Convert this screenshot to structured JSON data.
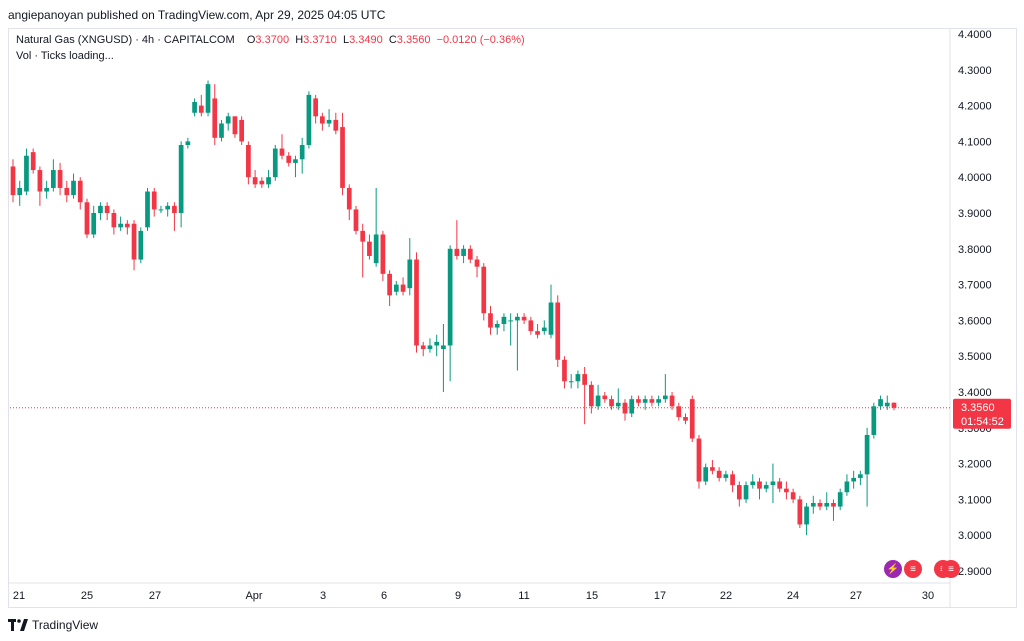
{
  "header": {
    "publisher_text": "angiepanoyan published on TradingView.com, Apr 29, 2025 04:05 UTC"
  },
  "legend": {
    "symbol": "Natural Gas (XNGUSD) · 4h · CAPITALCOM",
    "o_label": "O",
    "o_value": "3.3700",
    "h_label": "H",
    "h_value": "3.3710",
    "l_label": "L",
    "l_value": "3.3490",
    "c_label": "C",
    "c_value": "3.3560",
    "change": "−0.0120 (−0.36%)",
    "vol_text": "Vol · Ticks loading..."
  },
  "price_tag": {
    "price": "3.3560",
    "countdown": "01:54:52",
    "color": "#f23645"
  },
  "footer": {
    "brand": "TradingView"
  },
  "colors": {
    "up": "#089981",
    "down": "#f23645",
    "grid": "#f0f3fa",
    "text": "#131722"
  },
  "chart_data": {
    "type": "candlestick",
    "title": "Natural Gas (XNGUSD)",
    "timeframe": "4h",
    "y_ticks": [
      "4.4000",
      "4.3000",
      "4.2000",
      "4.1000",
      "4.0000",
      "3.9000",
      "3.8000",
      "3.7000",
      "3.6000",
      "3.5000",
      "3.4000",
      "3.3000",
      "3.2000",
      "3.1000",
      "3.0000",
      "2.9000"
    ],
    "ylim": [
      2.87,
      4.42
    ],
    "x_ticks": [
      "21",
      "25",
      "27",
      "Apr",
      "3",
      "6",
      "9",
      "11",
      "15",
      "17",
      "22",
      "24",
      "27",
      "30"
    ],
    "last_price": 3.356,
    "candles": [
      {
        "o": 4.03,
        "h": 4.05,
        "l": 3.93,
        "c": 3.95
      },
      {
        "o": 3.95,
        "h": 3.99,
        "l": 3.92,
        "c": 3.97
      },
      {
        "o": 3.96,
        "h": 4.08,
        "l": 3.95,
        "c": 4.06
      },
      {
        "o": 4.07,
        "h": 4.08,
        "l": 4.01,
        "c": 4.02
      },
      {
        "o": 4.02,
        "h": 4.03,
        "l": 3.92,
        "c": 3.96
      },
      {
        "o": 3.96,
        "h": 3.99,
        "l": 3.94,
        "c": 3.97
      },
      {
        "o": 3.97,
        "h": 4.05,
        "l": 3.96,
        "c": 4.02
      },
      {
        "o": 4.02,
        "h": 4.04,
        "l": 3.95,
        "c": 3.97
      },
      {
        "o": 3.97,
        "h": 3.99,
        "l": 3.93,
        "c": 3.95
      },
      {
        "o": 3.95,
        "h": 4.01,
        "l": 3.94,
        "c": 3.99
      },
      {
        "o": 3.99,
        "h": 4.0,
        "l": 3.91,
        "c": 3.93
      },
      {
        "o": 3.93,
        "h": 3.94,
        "l": 3.83,
        "c": 3.84
      },
      {
        "o": 3.84,
        "h": 3.92,
        "l": 3.83,
        "c": 3.9
      },
      {
        "o": 3.9,
        "h": 3.93,
        "l": 3.88,
        "c": 3.92
      },
      {
        "o": 3.92,
        "h": 3.93,
        "l": 3.88,
        "c": 3.9
      },
      {
        "o": 3.9,
        "h": 3.91,
        "l": 3.84,
        "c": 3.86
      },
      {
        "o": 3.86,
        "h": 3.89,
        "l": 3.85,
        "c": 3.87
      },
      {
        "o": 3.87,
        "h": 3.88,
        "l": 3.84,
        "c": 3.86
      },
      {
        "o": 3.87,
        "h": 3.88,
        "l": 3.74,
        "c": 3.77
      },
      {
        "o": 3.77,
        "h": 3.86,
        "l": 3.76,
        "c": 3.85
      },
      {
        "o": 3.86,
        "h": 3.97,
        "l": 3.85,
        "c": 3.96
      },
      {
        "o": 3.96,
        "h": 3.97,
        "l": 3.89,
        "c": 3.91
      },
      {
        "o": 3.91,
        "h": 3.92,
        "l": 3.9,
        "c": 3.91
      },
      {
        "o": 3.91,
        "h": 3.93,
        "l": 3.89,
        "c": 3.92
      },
      {
        "o": 3.92,
        "h": 3.93,
        "l": 3.85,
        "c": 3.9
      },
      {
        "o": 3.9,
        "h": 4.1,
        "l": 3.86,
        "c": 4.09
      },
      {
        "o": 4.09,
        "h": 4.11,
        "l": 4.08,
        "c": 4.1
      },
      {
        "o": 4.18,
        "h": 4.22,
        "l": 4.17,
        "c": 4.21
      },
      {
        "o": 4.2,
        "h": 4.23,
        "l": 4.17,
        "c": 4.18
      },
      {
        "o": 4.18,
        "h": 4.27,
        "l": 4.17,
        "c": 4.26
      },
      {
        "o": 4.22,
        "h": 4.26,
        "l": 4.09,
        "c": 4.11
      },
      {
        "o": 4.11,
        "h": 4.16,
        "l": 4.1,
        "c": 4.15
      },
      {
        "o": 4.15,
        "h": 4.18,
        "l": 4.13,
        "c": 4.17
      },
      {
        "o": 4.17,
        "h": 4.17,
        "l": 4.11,
        "c": 4.12
      },
      {
        "o": 4.16,
        "h": 4.17,
        "l": 4.09,
        "c": 4.1
      },
      {
        "o": 4.09,
        "h": 4.1,
        "l": 3.98,
        "c": 4.0
      },
      {
        "o": 4.0,
        "h": 4.02,
        "l": 3.97,
        "c": 3.98
      },
      {
        "o": 3.99,
        "h": 4.0,
        "l": 3.97,
        "c": 3.98
      },
      {
        "o": 3.98,
        "h": 4.02,
        "l": 3.97,
        "c": 4.0
      },
      {
        "o": 4.0,
        "h": 4.09,
        "l": 3.99,
        "c": 4.08
      },
      {
        "o": 4.08,
        "h": 4.12,
        "l": 4.05,
        "c": 4.06
      },
      {
        "o": 4.06,
        "h": 4.07,
        "l": 4.03,
        "c": 4.04
      },
      {
        "o": 4.04,
        "h": 4.06,
        "l": 4.0,
        "c": 4.05
      },
      {
        "o": 4.05,
        "h": 4.11,
        "l": 4.01,
        "c": 4.09
      },
      {
        "o": 4.09,
        "h": 4.24,
        "l": 4.08,
        "c": 4.23
      },
      {
        "o": 4.22,
        "h": 4.23,
        "l": 4.15,
        "c": 4.17
      },
      {
        "o": 4.17,
        "h": 4.18,
        "l": 4.13,
        "c": 4.15
      },
      {
        "o": 4.15,
        "h": 4.19,
        "l": 4.14,
        "c": 4.16
      },
      {
        "o": 4.16,
        "h": 4.18,
        "l": 4.12,
        "c": 4.13
      },
      {
        "o": 4.14,
        "h": 4.18,
        "l": 3.95,
        "c": 3.97
      },
      {
        "o": 3.97,
        "h": 3.98,
        "l": 3.88,
        "c": 3.91
      },
      {
        "o": 3.91,
        "h": 3.92,
        "l": 3.84,
        "c": 3.85
      },
      {
        "o": 3.85,
        "h": 3.87,
        "l": 3.72,
        "c": 3.82
      },
      {
        "o": 3.82,
        "h": 3.84,
        "l": 3.77,
        "c": 3.78
      },
      {
        "o": 3.76,
        "h": 3.97,
        "l": 3.75,
        "c": 3.84
      },
      {
        "o": 3.84,
        "h": 3.85,
        "l": 3.71,
        "c": 3.73
      },
      {
        "o": 3.73,
        "h": 3.74,
        "l": 3.64,
        "c": 3.67
      },
      {
        "o": 3.68,
        "h": 3.71,
        "l": 3.67,
        "c": 3.7
      },
      {
        "o": 3.7,
        "h": 3.72,
        "l": 3.67,
        "c": 3.68
      },
      {
        "o": 3.69,
        "h": 3.83,
        "l": 3.67,
        "c": 3.77
      },
      {
        "o": 3.77,
        "h": 3.79,
        "l": 3.51,
        "c": 3.53
      },
      {
        "o": 3.53,
        "h": 3.54,
        "l": 3.5,
        "c": 3.52
      },
      {
        "o": 3.52,
        "h": 3.55,
        "l": 3.51,
        "c": 3.53
      },
      {
        "o": 3.53,
        "h": 3.56,
        "l": 3.5,
        "c": 3.54
      },
      {
        "o": 3.52,
        "h": 3.59,
        "l": 3.4,
        "c": 3.53
      },
      {
        "o": 3.53,
        "h": 3.81,
        "l": 3.43,
        "c": 3.8
      },
      {
        "o": 3.8,
        "h": 3.88,
        "l": 3.77,
        "c": 3.78
      },
      {
        "o": 3.78,
        "h": 3.81,
        "l": 3.76,
        "c": 3.8
      },
      {
        "o": 3.8,
        "h": 3.81,
        "l": 3.76,
        "c": 3.77
      },
      {
        "o": 3.77,
        "h": 3.78,
        "l": 3.72,
        "c": 3.75
      },
      {
        "o": 3.75,
        "h": 3.76,
        "l": 3.6,
        "c": 3.62
      },
      {
        "o": 3.62,
        "h": 3.64,
        "l": 3.56,
        "c": 3.58
      },
      {
        "o": 3.58,
        "h": 3.6,
        "l": 3.56,
        "c": 3.59
      },
      {
        "o": 3.59,
        "h": 3.62,
        "l": 3.57,
        "c": 3.61
      },
      {
        "o": 3.6,
        "h": 3.62,
        "l": 3.53,
        "c": 3.6
      },
      {
        "o": 3.6,
        "h": 3.62,
        "l": 3.46,
        "c": 3.61
      },
      {
        "o": 3.61,
        "h": 3.62,
        "l": 3.59,
        "c": 3.6
      },
      {
        "o": 3.6,
        "h": 3.61,
        "l": 3.56,
        "c": 3.57
      },
      {
        "o": 3.57,
        "h": 3.59,
        "l": 3.55,
        "c": 3.56
      },
      {
        "o": 3.57,
        "h": 3.6,
        "l": 3.56,
        "c": 3.58
      },
      {
        "o": 3.56,
        "h": 3.7,
        "l": 3.55,
        "c": 3.65
      },
      {
        "o": 3.65,
        "h": 3.67,
        "l": 3.47,
        "c": 3.49
      },
      {
        "o": 3.49,
        "h": 3.5,
        "l": 3.41,
        "c": 3.43
      },
      {
        "o": 3.43,
        "h": 3.45,
        "l": 3.41,
        "c": 3.43
      },
      {
        "o": 3.43,
        "h": 3.46,
        "l": 3.41,
        "c": 3.45
      },
      {
        "o": 3.45,
        "h": 3.47,
        "l": 3.31,
        "c": 3.42
      },
      {
        "o": 3.42,
        "h": 3.43,
        "l": 3.34,
        "c": 3.36
      },
      {
        "o": 3.36,
        "h": 3.42,
        "l": 3.35,
        "c": 3.39
      },
      {
        "o": 3.39,
        "h": 3.4,
        "l": 3.37,
        "c": 3.38
      },
      {
        "o": 3.38,
        "h": 3.39,
        "l": 3.35,
        "c": 3.36
      },
      {
        "o": 3.36,
        "h": 3.41,
        "l": 3.35,
        "c": 3.37
      },
      {
        "o": 3.37,
        "h": 3.38,
        "l": 3.32,
        "c": 3.34
      },
      {
        "o": 3.34,
        "h": 3.39,
        "l": 3.33,
        "c": 3.38
      },
      {
        "o": 3.38,
        "h": 3.39,
        "l": 3.36,
        "c": 3.37
      },
      {
        "o": 3.37,
        "h": 3.39,
        "l": 3.35,
        "c": 3.38
      },
      {
        "o": 3.38,
        "h": 3.39,
        "l": 3.36,
        "c": 3.37
      },
      {
        "o": 3.37,
        "h": 3.39,
        "l": 3.36,
        "c": 3.38
      },
      {
        "o": 3.38,
        "h": 3.45,
        "l": 3.37,
        "c": 3.39
      },
      {
        "o": 3.39,
        "h": 3.4,
        "l": 3.35,
        "c": 3.36
      },
      {
        "o": 3.36,
        "h": 3.37,
        "l": 3.32,
        "c": 3.33
      },
      {
        "o": 3.33,
        "h": 3.34,
        "l": 3.31,
        "c": 3.32
      },
      {
        "o": 3.38,
        "h": 3.39,
        "l": 3.26,
        "c": 3.27
      },
      {
        "o": 3.27,
        "h": 3.28,
        "l": 3.13,
        "c": 3.15
      },
      {
        "o": 3.15,
        "h": 3.2,
        "l": 3.14,
        "c": 3.19
      },
      {
        "o": 3.19,
        "h": 3.21,
        "l": 3.17,
        "c": 3.18
      },
      {
        "o": 3.18,
        "h": 3.19,
        "l": 3.15,
        "c": 3.16
      },
      {
        "o": 3.16,
        "h": 3.18,
        "l": 3.15,
        "c": 3.17
      },
      {
        "o": 3.17,
        "h": 3.18,
        "l": 3.12,
        "c": 3.14
      },
      {
        "o": 3.14,
        "h": 3.15,
        "l": 3.08,
        "c": 3.1
      },
      {
        "o": 3.1,
        "h": 3.15,
        "l": 3.09,
        "c": 3.14
      },
      {
        "o": 3.14,
        "h": 3.17,
        "l": 3.13,
        "c": 3.15
      },
      {
        "o": 3.15,
        "h": 3.16,
        "l": 3.1,
        "c": 3.13
      },
      {
        "o": 3.13,
        "h": 3.15,
        "l": 3.12,
        "c": 3.14
      },
      {
        "o": 3.14,
        "h": 3.2,
        "l": 3.09,
        "c": 3.15
      },
      {
        "o": 3.15,
        "h": 3.16,
        "l": 3.12,
        "c": 3.13
      },
      {
        "o": 3.13,
        "h": 3.15,
        "l": 3.1,
        "c": 3.12
      },
      {
        "o": 3.12,
        "h": 3.13,
        "l": 3.09,
        "c": 3.1
      },
      {
        "o": 3.1,
        "h": 3.11,
        "l": 3.02,
        "c": 3.03
      },
      {
        "o": 3.03,
        "h": 3.09,
        "l": 3.0,
        "c": 3.08
      },
      {
        "o": 3.08,
        "h": 3.11,
        "l": 3.06,
        "c": 3.09
      },
      {
        "o": 3.09,
        "h": 3.1,
        "l": 3.07,
        "c": 3.08
      },
      {
        "o": 3.08,
        "h": 3.12,
        "l": 3.07,
        "c": 3.09
      },
      {
        "o": 3.09,
        "h": 3.1,
        "l": 3.04,
        "c": 3.08
      },
      {
        "o": 3.08,
        "h": 3.13,
        "l": 3.07,
        "c": 3.12
      },
      {
        "o": 3.12,
        "h": 3.17,
        "l": 3.11,
        "c": 3.15
      },
      {
        "o": 3.15,
        "h": 3.18,
        "l": 3.13,
        "c": 3.16
      },
      {
        "o": 3.16,
        "h": 3.18,
        "l": 3.14,
        "c": 3.17
      },
      {
        "o": 3.17,
        "h": 3.3,
        "l": 3.08,
        "c": 3.28
      },
      {
        "o": 3.28,
        "h": 3.37,
        "l": 3.27,
        "c": 3.36
      },
      {
        "o": 3.36,
        "h": 3.39,
        "l": 3.35,
        "c": 3.38
      },
      {
        "o": 3.36,
        "h": 3.39,
        "l": 3.35,
        "c": 3.37
      },
      {
        "o": 3.37,
        "h": 3.371,
        "l": 3.349,
        "c": 3.356
      }
    ]
  }
}
